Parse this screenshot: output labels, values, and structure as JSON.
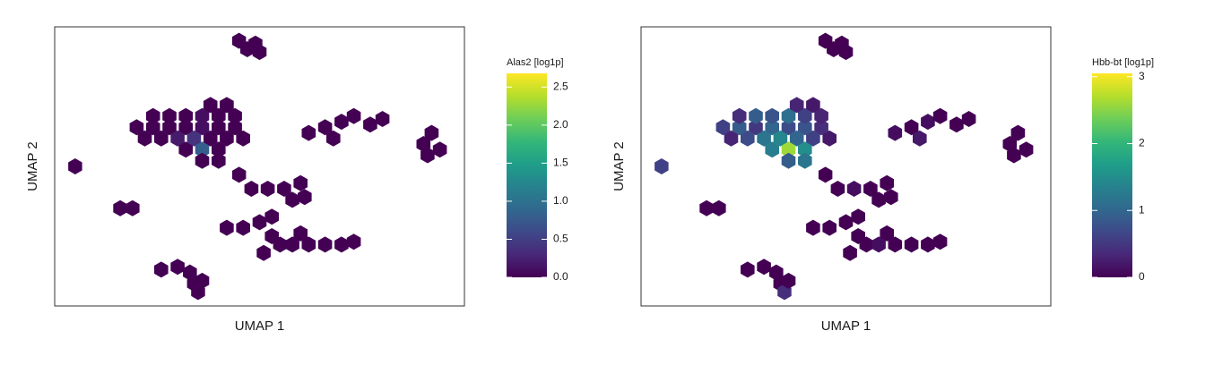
{
  "chart_data": [
    {
      "type": "hexbin",
      "xlabel": "UMAP 1",
      "ylabel": "UMAP 2",
      "colorbar_label": "Alas2 [log1p]",
      "xlim": [
        0,
        100
      ],
      "ylim": [
        0,
        100
      ],
      "clim": [
        0,
        2.68
      ],
      "cticks": [
        {
          "value": 0,
          "label": "0.0"
        },
        {
          "value": 0.5,
          "label": "0.5"
        },
        {
          "value": 1,
          "label": "1.0"
        },
        {
          "value": 1.5,
          "label": "1.5"
        },
        {
          "value": 2,
          "label": "2.0"
        },
        {
          "value": 2.5,
          "label": "2.5"
        }
      ],
      "x": [
        45,
        47,
        49,
        50,
        20,
        24,
        28,
        32,
        36,
        40,
        44,
        22,
        26,
        30,
        34,
        38,
        42,
        46,
        24,
        28,
        32,
        36,
        40,
        44,
        32,
        36,
        40,
        38,
        42,
        36,
        40,
        5,
        62,
        66,
        70,
        73,
        77,
        80,
        68,
        90,
        92,
        94,
        91,
        45,
        48,
        52,
        56,
        60,
        61,
        58,
        16,
        19,
        42,
        46,
        50,
        53,
        53,
        55,
        58,
        62,
        66,
        70,
        73,
        60,
        51,
        26,
        30,
        33,
        34,
        35,
        36
      ],
      "y": [
        95,
        92,
        94,
        91,
        64,
        64,
        64,
        64,
        64,
        64,
        64,
        60,
        60,
        60,
        60,
        60,
        60,
        60,
        68,
        68,
        68,
        68,
        68,
        68,
        56,
        56,
        56,
        72,
        72,
        52,
        52,
        50,
        62,
        64,
        66,
        68,
        65,
        67,
        60,
        58,
        62,
        56,
        54,
        47,
        42,
        42,
        42,
        44,
        39,
        38,
        35,
        35,
        28,
        28,
        30,
        32,
        25,
        22,
        22,
        22,
        22,
        22,
        23,
        26,
        19,
        13,
        14,
        12,
        8,
        5,
        9
      ],
      "values": [
        0,
        0,
        0,
        0,
        0,
        0,
        0,
        0,
        0.1,
        0,
        0,
        0,
        0,
        0.2,
        0.4,
        0,
        0,
        0,
        0,
        0,
        0,
        0.1,
        0,
        0,
        0,
        0.8,
        0,
        0,
        0,
        0,
        0,
        0,
        0,
        0,
        0,
        0,
        0,
        0,
        0,
        0,
        0,
        0,
        0,
        0,
        0,
        0,
        0,
        0,
        0,
        0,
        0,
        0,
        0,
        0,
        0,
        0,
        0,
        0,
        0,
        0,
        0,
        0,
        0,
        0,
        0,
        0,
        0,
        0,
        0,
        0,
        0
      ]
    },
    {
      "type": "hexbin",
      "xlabel": "UMAP 1",
      "ylabel": "UMAP 2",
      "colorbar_label": "Hbb-bt [log1p]",
      "xlim": [
        0,
        100
      ],
      "ylim": [
        0,
        100
      ],
      "clim": [
        0,
        3.05
      ],
      "cticks": [
        0,
        1,
        2,
        3
      ],
      "x": [
        45,
        47,
        49,
        50,
        20,
        24,
        28,
        32,
        36,
        40,
        44,
        22,
        26,
        30,
        34,
        38,
        42,
        46,
        24,
        28,
        32,
        36,
        40,
        44,
        32,
        36,
        40,
        38,
        42,
        36,
        40,
        5,
        62,
        66,
        70,
        73,
        77,
        80,
        68,
        90,
        92,
        94,
        91,
        45,
        48,
        52,
        56,
        60,
        61,
        58,
        16,
        19,
        42,
        46,
        50,
        53,
        53,
        55,
        58,
        62,
        66,
        70,
        73,
        60,
        51,
        26,
        30,
        33,
        34,
        35,
        36
      ],
      "y": [
        95,
        92,
        94,
        91,
        64,
        64,
        64,
        64,
        64,
        64,
        64,
        60,
        60,
        60,
        60,
        60,
        60,
        60,
        68,
        68,
        68,
        68,
        68,
        68,
        56,
        56,
        56,
        72,
        72,
        52,
        52,
        50,
        62,
        64,
        66,
        68,
        65,
        67,
        60,
        58,
        62,
        56,
        54,
        47,
        42,
        42,
        42,
        44,
        39,
        38,
        35,
        35,
        28,
        28,
        30,
        32,
        25,
        22,
        22,
        22,
        22,
        22,
        23,
        26,
        19,
        13,
        14,
        12,
        8,
        5,
        9
      ],
      "values": [
        0,
        0,
        0,
        0,
        0.6,
        0.9,
        0.5,
        1.0,
        0.7,
        0.8,
        0.4,
        0.3,
        0.7,
        1.2,
        1.4,
        1.0,
        0.6,
        0.2,
        0.4,
        0.9,
        0.8,
        1.1,
        0.6,
        0.3,
        1.3,
        2.6,
        1.5,
        0.3,
        0.2,
        0.9,
        1.2,
        0.6,
        0.1,
        0,
        0.1,
        0,
        0,
        0,
        0.2,
        0,
        0,
        0,
        0,
        0,
        0,
        0.1,
        0,
        0,
        0,
        0,
        0,
        0,
        0,
        0,
        0,
        0,
        0,
        0,
        0.1,
        0,
        0,
        0,
        0,
        0,
        0,
        0,
        0,
        0,
        0,
        0.4,
        0
      ]
    }
  ]
}
